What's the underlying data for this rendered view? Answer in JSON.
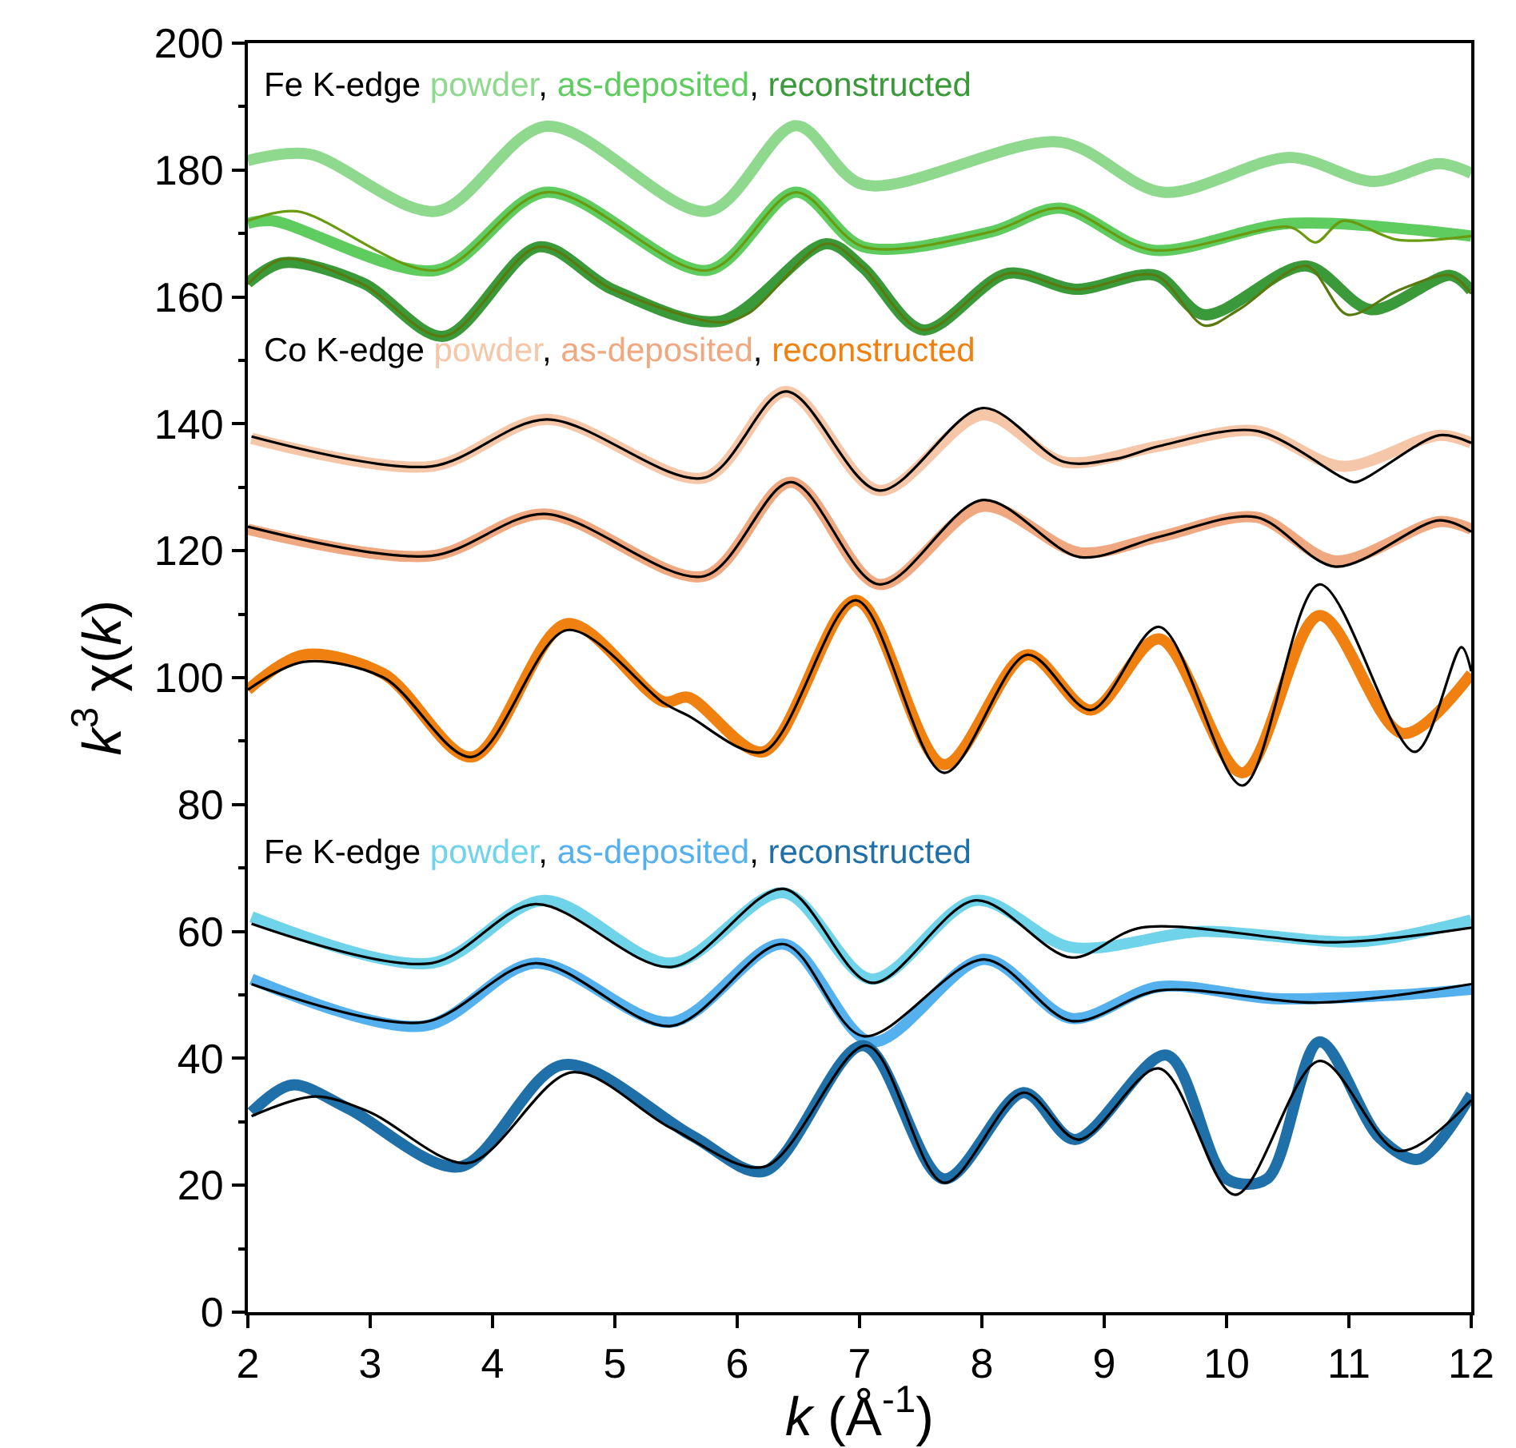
{
  "chart_data": {
    "type": "line",
    "xlabel": "k (Å$^{-1}$)",
    "ylabel": "k$^{3}$ χ(k)",
    "xlim": [
      2,
      12
    ],
    "xticks": [
      2,
      3,
      4,
      5,
      6,
      7,
      8,
      9,
      10,
      11,
      12
    ],
    "ylim": [
      0,
      200
    ],
    "yticks": [
      0,
      {
        "value": 10,
        "label": null
      },
      20,
      {
        "value": 30,
        "label": null
      },
      40,
      {
        "value": 50,
        "label": null
      },
      60,
      {
        "value": 70,
        "label": null
      },
      80,
      {
        "value": 90,
        "label": null
      },
      100,
      {
        "value": 110,
        "label": null
      },
      120,
      {
        "value": 130,
        "label": null
      },
      140,
      {
        "value": 150,
        "label": null
      },
      160,
      {
        "value": 170,
        "label": null
      },
      180,
      {
        "value": 190,
        "label": null
      },
      200
    ],
    "marker": "none",
    "line_style": "solid",
    "annotations": [
      "Fe K-edge",
      ",",
      ",",
      "Co K-edge",
      ",",
      ",",
      "Fe K-edge",
      ",",
      ","
    ],
    "series": [
      {
        "name": "powder",
        "color": "#8fd98f",
        "x": [
          2,
          2.5,
          3.54,
          4.44,
          5.76,
          6.48,
          7.03,
          8.64,
          9.48,
          10.52,
          11.2,
          11.74,
          12
        ],
        "values": [
          181.5,
          182.5,
          173.5,
          186.9,
          173.5,
          187,
          177.7,
          184.4,
          176.5,
          182,
          178.2,
          181,
          179.5
        ]
      },
      {
        "name": "as-deposited",
        "color": "#5fcc5f",
        "x": [
          2,
          2.2,
          3.54,
          4.44,
          5.76,
          6.48,
          7.03,
          8.08,
          8.64,
          9.39,
          10.52,
          12
        ],
        "values": [
          171.6,
          172,
          164.2,
          176.5,
          164.2,
          176.5,
          167.9,
          170.3,
          174,
          167.4,
          171.6,
          169.6
        ]
      },
      {
        "color": "#6a9a10",
        "x": [
          2,
          2.4,
          3.54,
          4.44,
          5.76,
          6.48,
          7.03,
          8.08,
          8.64,
          9.39,
          10.52,
          10.73,
          10.95,
          11.4,
          12
        ],
        "values": [
          172,
          173.5,
          164.2,
          176.5,
          164.2,
          176.5,
          167.9,
          170.3,
          174,
          167.4,
          171,
          168.6,
          172,
          169,
          169.6
        ]
      },
      {
        "name": "reconstructed",
        "color": "#3a9a3a",
        "x": [
          2,
          2.29,
          2.94,
          3.6,
          4.38,
          4.98,
          5.86,
          6.73,
          7.03,
          7.52,
          8.21,
          8.77,
          9.42,
          9.82,
          10.65,
          11.18,
          11.83,
          12
        ],
        "values": [
          162.2,
          165.4,
          162.2,
          153.8,
          167.9,
          161.2,
          156.2,
          168.4,
          164.6,
          154.8,
          163.7,
          161.2,
          163.4,
          157.2,
          164.9,
          158,
          163.4,
          161
        ]
      },
      {
        "color": "#5a7a10",
        "x": [
          2,
          2.29,
          2.94,
          3.6,
          4.38,
          4.98,
          5.86,
          6.1,
          6.73,
          7.03,
          7.52,
          8.21,
          8.77,
          9.42,
          9.82,
          10.1,
          10.65,
          10.99,
          11.4,
          11.83,
          12
        ],
        "values": [
          162,
          166,
          162,
          153.8,
          167.9,
          161.2,
          156,
          157.5,
          168.4,
          164.6,
          154.8,
          163.7,
          161.2,
          163.4,
          155.5,
          158,
          164.9,
          157.2,
          161,
          163.4,
          160.5
        ]
      },
      {
        "name": "powder",
        "color": "#f6c6a8",
        "x": [
          2.03,
          3.5,
          4.44,
          5.73,
          6.4,
          7.16,
          8.01,
          8.67,
          9.45,
          10.24,
          10.95,
          11.74,
          12
        ],
        "values": [
          137.7,
          133.3,
          140.7,
          131.5,
          145.1,
          129.5,
          141.4,
          134,
          136.5,
          138.9,
          133.3,
          138.2,
          137
        ]
      },
      {
        "color": "#000000",
        "x": [
          2.03,
          3.5,
          4.44,
          5.73,
          6.4,
          7.16,
          8.01,
          8.67,
          9.1,
          9.45,
          10.24,
          10.95,
          11.05,
          11.74,
          12
        ],
        "values": [
          138,
          133.3,
          140.7,
          131.5,
          145.1,
          129.5,
          142.5,
          134,
          134.5,
          136.5,
          138.9,
          131.5,
          130.8,
          138.2,
          137
        ]
      },
      {
        "name": "as-deposited",
        "color": "#f0a880",
        "x": [
          2,
          3.5,
          4.42,
          5.73,
          6.44,
          7.16,
          8.01,
          8.8,
          9.45,
          10.24,
          10.89,
          11.74,
          12
        ],
        "values": [
          123.4,
          119.2,
          125.8,
          116,
          130.8,
          114.7,
          127,
          119.7,
          122.2,
          125.3,
          118.4,
          124.6,
          123.4
        ]
      },
      {
        "color": "#000000",
        "x": [
          2,
          3.5,
          4.42,
          5.73,
          6.44,
          7.16,
          8.01,
          8.8,
          9.45,
          10.24,
          10.89,
          11.74,
          12
        ],
        "values": [
          123.8,
          119.2,
          125.8,
          116,
          130.8,
          114.7,
          128,
          119,
          122.2,
          125.3,
          117.5,
          124.8,
          123
        ]
      },
      {
        "name": "reconstructed",
        "color": "#f08010",
        "x": [
          2,
          2.46,
          3.11,
          3.83,
          4.61,
          5.4,
          5.6,
          6.21,
          6.97,
          7.69,
          8.37,
          8.89,
          9.45,
          10.13,
          10.76,
          11.44,
          12
        ],
        "values": [
          98.1,
          103.6,
          100.6,
          87.5,
          108.5,
          96.2,
          96.9,
          88.3,
          112.2,
          86.3,
          103.6,
          94.9,
          106.1,
          85,
          109.8,
          91.2,
          100.6
        ]
      },
      {
        "color": "#000000",
        "x": [
          2,
          2.46,
          3.11,
          3.83,
          4.61,
          5.4,
          5.6,
          6.21,
          6.97,
          7.69,
          8.37,
          8.89,
          9.45,
          10.13,
          10.76,
          11.54,
          11.92,
          12
        ],
        "values": [
          98.1,
          102.5,
          100,
          87.5,
          107.5,
          96,
          94,
          88.3,
          112.2,
          85,
          103.6,
          94.9,
          108,
          83,
          114.7,
          88.3,
          104.8,
          101
        ]
      },
      {
        "name": "powder",
        "color": "#6fd3ea",
        "x": [
          2.03,
          3.5,
          4.42,
          5.46,
          6.38,
          7.1,
          7.95,
          8.73,
          9.8,
          11.1,
          12
        ],
        "values": [
          62.3,
          55,
          64.9,
          55,
          66.1,
          52.5,
          64.9,
          57.5,
          60,
          58.4,
          61.8
        ]
      },
      {
        "color": "#000000",
        "x": [
          2.03,
          3.5,
          4.35,
          5.46,
          6.38,
          7.1,
          7.95,
          8.73,
          9.3,
          10.9,
          12
        ],
        "values": [
          61.2,
          55,
          64.3,
          54.4,
          66.7,
          51.9,
          64.9,
          55.9,
          60.6,
          58.3,
          60.6
        ]
      },
      {
        "name": "as-deposited",
        "color": "#55b0ee",
        "x": [
          2.03,
          3.44,
          4.35,
          5.46,
          6.38,
          7.1,
          8.02,
          8.73,
          9.45,
          10.4,
          11.41,
          12
        ],
        "values": [
          52.5,
          45.1,
          55,
          45.7,
          58,
          42.6,
          55.6,
          46.3,
          51.3,
          49.4,
          50,
          50.9
        ]
      },
      {
        "color": "#000000",
        "x": [
          2.03,
          3.44,
          4.35,
          5.46,
          6.38,
          7.03,
          8.02,
          8.73,
          9.45,
          10.76,
          12
        ],
        "values": [
          51.7,
          45.7,
          55,
          45.1,
          58,
          43.5,
          55.6,
          45.9,
          50.7,
          48.8,
          51.7
        ]
      },
      {
        "name": "reconstructed",
        "color": "#1f6fa8",
        "x": [
          2.03,
          2.36,
          2.82,
          3.73,
          4.58,
          5.63,
          6.22,
          7.03,
          7.69,
          8.34,
          8.76,
          9.51,
          10.0,
          10.33,
          10.76,
          11.25,
          11.57,
          12
        ],
        "values": [
          31.5,
          35.8,
          32.1,
          22.9,
          39,
          27.8,
          22.2,
          42,
          21,
          34.6,
          27.2,
          40.5,
          21,
          21,
          42.6,
          27.5,
          24.1,
          34.3
        ]
      },
      {
        "color": "#000000",
        "x": [
          2.03,
          2.55,
          3.0,
          3.8,
          4.65,
          5.46,
          6.22,
          7.06,
          7.69,
          8.34,
          8.79,
          9.45,
          10.07,
          10.76,
          11.41,
          12
        ],
        "values": [
          30.9,
          34,
          31.5,
          23.5,
          37.8,
          29,
          22.9,
          42,
          20.4,
          34.6,
          27.2,
          38.4,
          18.5,
          39.6,
          25.4,
          33.4
        ]
      }
    ]
  }
}
